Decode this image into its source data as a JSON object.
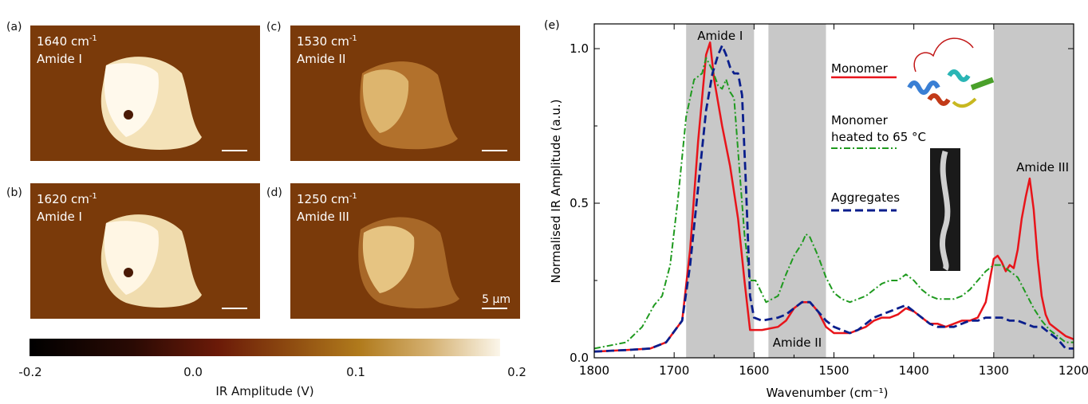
{
  "panels": [
    {
      "letter": "(a)",
      "line1": "1640 cm",
      "sup": "-1",
      "line2": "Amide I"
    },
    {
      "letter": "(b)",
      "line1": "1620 cm",
      "sup": "-1",
      "line2": "Amide I"
    },
    {
      "letter": "(c)",
      "line1": "1530 cm",
      "sup": "-1",
      "line2": "Amide II"
    },
    {
      "letter": "(d)",
      "line1": "1250 cm",
      "sup": "-1",
      "line2": "Amide III"
    }
  ],
  "scale_label": "5 µm",
  "colorbar": {
    "label": "IR Amplitude (V)",
    "ticks": [
      "-0.2",
      "0.0",
      "0.1",
      "0.2"
    ]
  },
  "colors": {
    "monomer": "#e8141a",
    "heated": "#1f9a1f",
    "aggregates": "#0a1e8c",
    "band": "#c8c8c8"
  },
  "chart_data": {
    "type": "line",
    "panel_letter": "(e)",
    "xlabel": "Wavenumber (cm⁻¹)",
    "ylabel": "Normalised IR Amplitude (a.u.)",
    "xlim": [
      1800,
      1200
    ],
    "ylim": [
      0,
      1.08
    ],
    "xticks": [
      "1800",
      "1700",
      "1600",
      "1500",
      "1400",
      "1300",
      "1200"
    ],
    "yticks": [
      "0.0",
      "0.5",
      "1.0"
    ],
    "bands": [
      {
        "from": 1685,
        "to": 1600,
        "label": "Amide I",
        "label_pos": "top"
      },
      {
        "from": 1582,
        "to": 1510,
        "label": "Amide II",
        "label_pos": "bottom"
      },
      {
        "from": 1300,
        "to": 1200,
        "label": "Amide III",
        "label_pos": "side"
      }
    ],
    "legend": {
      "monomer": "Monomer",
      "heated_line1": "Monomer",
      "heated_line2": "heated to 65 °C",
      "aggregates": "Aggregates"
    },
    "series": [
      {
        "name": "Monomer",
        "style": "solid",
        "x": [
          1800,
          1760,
          1730,
          1710,
          1690,
          1680,
          1670,
          1660,
          1655,
          1650,
          1640,
          1630,
          1620,
          1612,
          1605,
          1598,
          1590,
          1570,
          1560,
          1550,
          1540,
          1530,
          1520,
          1510,
          1500,
          1490,
          1480,
          1470,
          1460,
          1450,
          1440,
          1430,
          1420,
          1410,
          1400,
          1390,
          1380,
          1370,
          1360,
          1350,
          1340,
          1330,
          1320,
          1310,
          1300,
          1295,
          1290,
          1285,
          1280,
          1275,
          1270,
          1265,
          1260,
          1255,
          1250,
          1245,
          1240,
          1235,
          1230,
          1220,
          1210,
          1200
        ],
        "y": [
          0.02,
          0.025,
          0.03,
          0.05,
          0.12,
          0.35,
          0.7,
          0.98,
          1.02,
          0.9,
          0.75,
          0.62,
          0.45,
          0.25,
          0.09,
          0.09,
          0.09,
          0.1,
          0.12,
          0.16,
          0.18,
          0.18,
          0.15,
          0.1,
          0.08,
          0.08,
          0.08,
          0.09,
          0.1,
          0.12,
          0.13,
          0.13,
          0.14,
          0.16,
          0.15,
          0.13,
          0.11,
          0.11,
          0.1,
          0.11,
          0.12,
          0.12,
          0.13,
          0.18,
          0.32,
          0.33,
          0.31,
          0.28,
          0.3,
          0.29,
          0.35,
          0.45,
          0.52,
          0.58,
          0.48,
          0.32,
          0.2,
          0.14,
          0.11,
          0.09,
          0.07,
          0.06
        ]
      },
      {
        "name": "Monomer heated to 65 °C",
        "style": "dashdot",
        "x": [
          1800,
          1760,
          1740,
          1725,
          1715,
          1705,
          1695,
          1685,
          1675,
          1665,
          1660,
          1652,
          1645,
          1640,
          1635,
          1630,
          1625,
          1618,
          1612,
          1605,
          1598,
          1585,
          1570,
          1560,
          1550,
          1540,
          1535,
          1530,
          1520,
          1510,
          1500,
          1490,
          1480,
          1470,
          1460,
          1450,
          1440,
          1430,
          1420,
          1410,
          1400,
          1390,
          1380,
          1370,
          1360,
          1350,
          1340,
          1330,
          1320,
          1310,
          1300,
          1290,
          1280,
          1270,
          1260,
          1250,
          1240,
          1230,
          1220,
          1210,
          1200
        ],
        "y": [
          0.03,
          0.05,
          0.1,
          0.17,
          0.2,
          0.3,
          0.52,
          0.78,
          0.9,
          0.92,
          0.97,
          0.93,
          0.88,
          0.87,
          0.9,
          0.86,
          0.84,
          0.6,
          0.4,
          0.25,
          0.25,
          0.18,
          0.2,
          0.27,
          0.33,
          0.37,
          0.4,
          0.39,
          0.33,
          0.26,
          0.21,
          0.19,
          0.18,
          0.19,
          0.2,
          0.22,
          0.24,
          0.25,
          0.25,
          0.27,
          0.25,
          0.22,
          0.2,
          0.19,
          0.19,
          0.19,
          0.2,
          0.22,
          0.25,
          0.28,
          0.3,
          0.3,
          0.28,
          0.26,
          0.21,
          0.16,
          0.12,
          0.09,
          0.07,
          0.05,
          0.05
        ]
      },
      {
        "name": "Aggregates",
        "style": "dashed",
        "x": [
          1800,
          1760,
          1730,
          1710,
          1690,
          1680,
          1670,
          1660,
          1652,
          1645,
          1640,
          1635,
          1630,
          1625,
          1620,
          1615,
          1610,
          1605,
          1600,
          1590,
          1570,
          1560,
          1550,
          1540,
          1530,
          1520,
          1510,
          1500,
          1490,
          1480,
          1470,
          1460,
          1450,
          1440,
          1430,
          1420,
          1410,
          1400,
          1390,
          1380,
          1370,
          1360,
          1350,
          1340,
          1330,
          1320,
          1310,
          1300,
          1290,
          1280,
          1270,
          1260,
          1250,
          1240,
          1230,
          1220,
          1210,
          1200
        ],
        "y": [
          0.02,
          0.025,
          0.03,
          0.05,
          0.12,
          0.3,
          0.55,
          0.8,
          0.92,
          0.98,
          1.01,
          0.98,
          0.94,
          0.92,
          0.92,
          0.85,
          0.55,
          0.2,
          0.13,
          0.12,
          0.13,
          0.14,
          0.16,
          0.18,
          0.18,
          0.15,
          0.12,
          0.1,
          0.09,
          0.08,
          0.09,
          0.11,
          0.13,
          0.14,
          0.15,
          0.16,
          0.17,
          0.15,
          0.13,
          0.11,
          0.1,
          0.1,
          0.1,
          0.11,
          0.12,
          0.12,
          0.13,
          0.13,
          0.13,
          0.12,
          0.12,
          0.11,
          0.1,
          0.1,
          0.08,
          0.06,
          0.03,
          0.03
        ]
      }
    ]
  }
}
